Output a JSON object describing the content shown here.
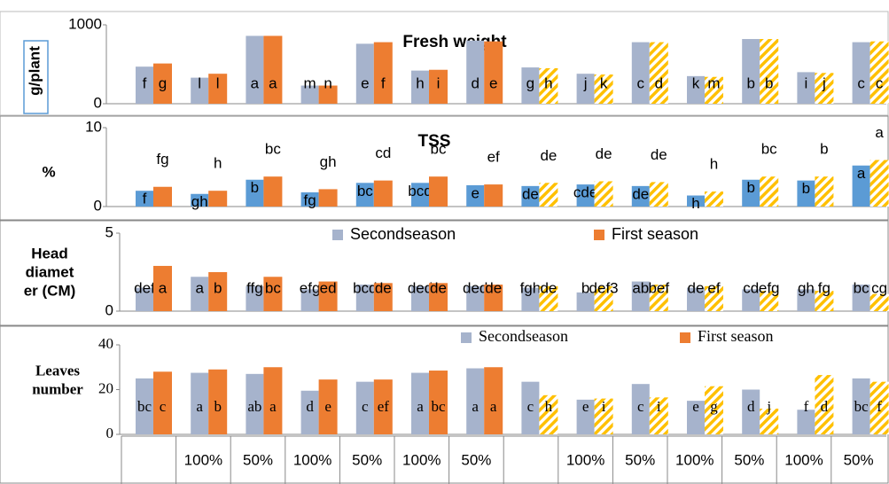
{
  "chart_data": [
    {
      "type": "bar",
      "title": "Fresh weight",
      "ylabel": [
        "g/plant"
      ],
      "ylim": [
        0,
        1000
      ],
      "yticks": [
        0,
        1000
      ],
      "series": [
        {
          "color": "#a6b3cc",
          "values": [
            470,
            330,
            860,
            230,
            760,
            420,
            800,
            460,
            380,
            780,
            350,
            820,
            400,
            780
          ],
          "letters": [
            "f",
            "l",
            "a",
            "m",
            "e",
            "h",
            "d",
            "g",
            "j",
            "c",
            "k",
            "b",
            "i",
            "c"
          ]
        },
        {
          "color": "#ed7d31",
          "hatch_color": "#ffc000",
          "hatched": [
            false,
            false,
            false,
            false,
            false,
            false,
            false,
            true,
            true,
            true,
            true,
            true,
            true,
            true
          ],
          "values": [
            510,
            380,
            860,
            230,
            780,
            430,
            790,
            450,
            370,
            780,
            340,
            820,
            390,
            790
          ],
          "letters": [
            "g",
            "l",
            "a",
            "n",
            "f",
            "i",
            "e",
            "h",
            "k",
            "d",
            "m",
            "b",
            "j",
            "c"
          ]
        }
      ]
    },
    {
      "type": "bar",
      "title": "TSS",
      "ylabel": [
        "%"
      ],
      "ylim": [
        0,
        10
      ],
      "yticks": [
        0,
        10
      ],
      "series": [
        {
          "color": "#5b9bd5",
          "values": [
            2,
            1.6,
            3.4,
            1.8,
            3,
            3,
            2.7,
            2.6,
            2.8,
            2.6,
            1.4,
            3.4,
            3.3,
            5.2
          ],
          "letters": [
            "f",
            "gh",
            "b",
            "fg",
            "bc",
            "bcd",
            "e",
            "de",
            "cde",
            "de",
            "h",
            "b",
            "b",
            "a"
          ]
        },
        {
          "color": "#ed7d31",
          "hatch_color": "#ffc000",
          "hatched": [
            false,
            false,
            false,
            false,
            false,
            false,
            false,
            true,
            true,
            true,
            true,
            true,
            true,
            true
          ],
          "values": [
            2.5,
            2,
            3.8,
            2.2,
            3.3,
            3.8,
            2.8,
            3,
            3.2,
            3.1,
            1.9,
            3.8,
            3.8,
            5.9
          ],
          "letters": [
            "fg",
            "h",
            "bc",
            "gh",
            "cd",
            "bc",
            "ef",
            "de",
            "de",
            "de",
            "h",
            "bc",
            "b",
            "a"
          ]
        }
      ]
    },
    {
      "type": "bar",
      "ylabel": [
        "Head",
        "diamet",
        "er (CM)"
      ],
      "ylim": [
        0,
        5
      ],
      "yticks": [
        0,
        5
      ],
      "series": [
        {
          "name": "Secondseason",
          "color": "#a6b3cc",
          "values": [
            1.5,
            2.2,
            1.6,
            1.4,
            1.7,
            1.6,
            1.6,
            1.5,
            1.2,
            1.9,
            1.5,
            1.4,
            1.4,
            1.7
          ],
          "letters": [
            "def",
            "a",
            "ffg",
            "efg",
            "bcd",
            "ded",
            "ded",
            "fgh",
            "b",
            "ab",
            "de",
            "cd",
            "gh",
            "bc"
          ]
        },
        {
          "name": "First season",
          "color": "#ed7d31",
          "hatch_color": "#ffc000",
          "hatched": [
            false,
            false,
            false,
            false,
            false,
            false,
            false,
            true,
            true,
            true,
            true,
            true,
            true,
            true
          ],
          "values": [
            2.9,
            2.5,
            2.2,
            1.9,
            1.8,
            1.8,
            1.7,
            1.6,
            1.6,
            1.7,
            1.6,
            1.3,
            1.3,
            1.1
          ],
          "letters": [
            "a",
            "b",
            "bc",
            "ed",
            "de",
            "de",
            "de",
            "de",
            "def3",
            "bef",
            "ef",
            "efg",
            "fg",
            "cg"
          ]
        }
      ]
    },
    {
      "type": "bar",
      "ylabel": [
        "Leaves",
        "number"
      ],
      "ylim": [
        0,
        40
      ],
      "yticks": [
        0,
        20,
        40
      ],
      "categories": [
        null,
        "100%",
        "50%",
        "100%",
        "50%",
        "100%",
        "50%",
        null,
        "100%",
        "50%",
        "100%",
        "50%",
        "100%",
        "50%"
      ],
      "series": [
        {
          "name": "Secondseason",
          "color": "#a6b3cc",
          "values": [
            25,
            27.5,
            27,
            19.5,
            23.5,
            27.5,
            29.5,
            23.5,
            15.5,
            22.5,
            15,
            20,
            11,
            25
          ],
          "letters": [
            "bc",
            "a",
            "ab",
            "d",
            "c",
            "a",
            "a",
            "c",
            "e",
            "c",
            "e",
            "d",
            "f",
            "bc"
          ]
        },
        {
          "name": "First season",
          "color": "#ed7d31",
          "hatch_color": "#ffc000",
          "hatched": [
            false,
            false,
            false,
            false,
            false,
            false,
            false,
            true,
            true,
            true,
            true,
            true,
            true,
            true
          ],
          "values": [
            28,
            29,
            30,
            24.5,
            24.5,
            28.5,
            30,
            17.5,
            16,
            16.5,
            21.5,
            11.5,
            26.5,
            23.5
          ],
          "letters": [
            "c",
            "b",
            "a",
            "e",
            "ef",
            "bc",
            "a",
            "h",
            "i",
            "i",
            "g",
            "j",
            "d",
            "f"
          ]
        }
      ]
    }
  ]
}
